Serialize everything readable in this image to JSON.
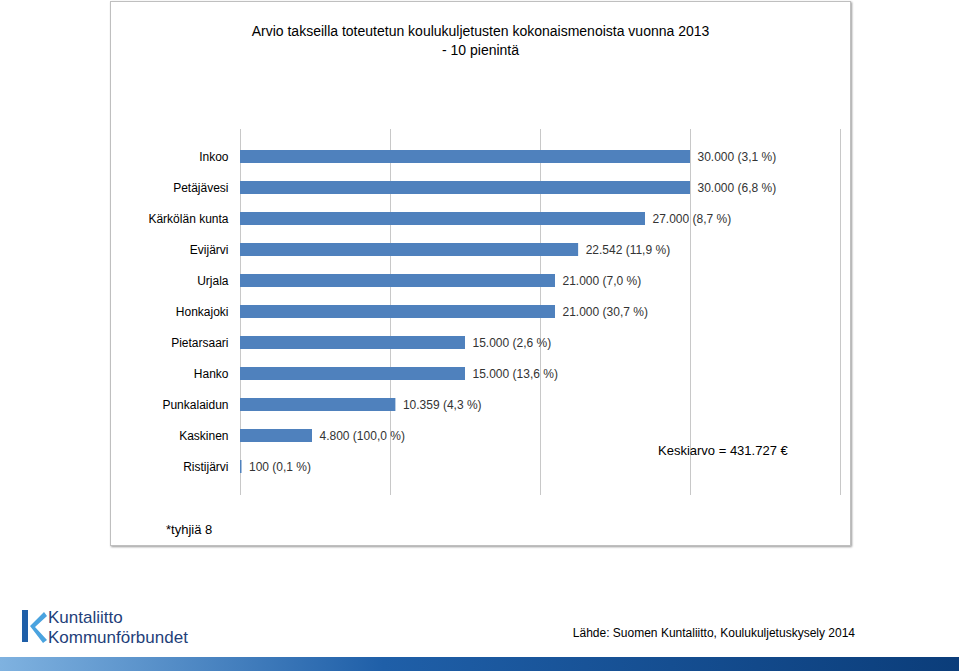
{
  "chart_data": {
    "type": "bar",
    "orientation": "horizontal",
    "title": "Arvio takseilla toteutetun koulukuljetusten kokonaismenoista vuonna 2013",
    "subtitle": "- 10 pienintä",
    "categories": [
      "Inkoo",
      "Petäjävesi",
      "Kärkölän kunta",
      "Evijärvi",
      "Urjala",
      "Honkajoki",
      "Pietarsaari",
      "Hanko",
      "Punkalaidun",
      "Kaskinen",
      "Ristijärvi"
    ],
    "values": [
      30000,
      30000,
      27000,
      22542,
      21000,
      21000,
      15000,
      15000,
      10359,
      4800,
      100
    ],
    "value_labels": [
      "30.000 (3,1 %)",
      "30.000 (6,8 %)",
      "27.000 (8,7 %)",
      "22.542 (11,9 %)",
      "21.000 (7,0 %)",
      "21.000 (30,7 %)",
      "15.000 (2,6 %)",
      "15.000 (13,6 %)",
      "10.359 (4,3 %)",
      "4.800 (100,0 %)",
      "100 (0,1 %)"
    ],
    "data_labels": true,
    "color": "#4f81bd",
    "xlim": [
      0,
      40000
    ],
    "xticks": [
      0,
      10000,
      20000,
      30000,
      40000
    ],
    "grid": true,
    "tick_labels": "y",
    "annotations": [
      "Keskiarvo = 431.727 €",
      "*tyhjiä 8"
    ],
    "source": "Lähde: Suomen Kuntaliitto, Koulukuljetuskysely 2014",
    "logo": [
      "Kuntaliitto",
      "Kommunförbundet"
    ]
  }
}
